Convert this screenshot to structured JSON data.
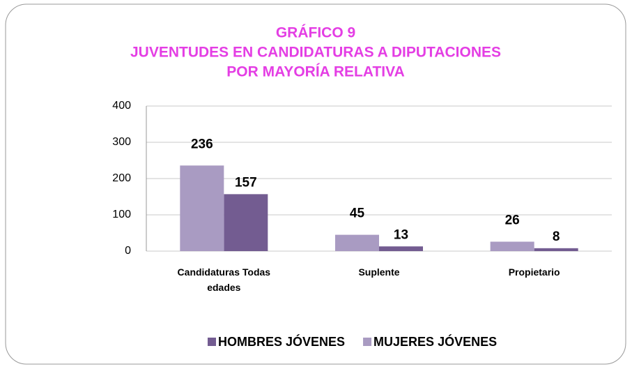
{
  "chart_data": {
    "type": "bar",
    "title": [
      "GRÁFICO 9",
      "JUVENTUDES EN CANDIDATURAS A DIPUTACIONES",
      "POR MAYORÍA RELATIVA"
    ],
    "categories": [
      "Candidaturas Todas edades",
      "Suplente",
      "Propietario"
    ],
    "series": [
      {
        "name": "HOMBRES JÓVENES",
        "color": "#735c91",
        "values": [
          157,
          13,
          8
        ]
      },
      {
        "name": "MUJERES JÓVENES",
        "color": "#a99bc2",
        "values": [
          236,
          45,
          26
        ]
      }
    ],
    "ylim": [
      0,
      400
    ],
    "yticks": [
      0,
      100,
      200,
      300,
      400
    ],
    "grid": true,
    "legend": "bottom"
  }
}
